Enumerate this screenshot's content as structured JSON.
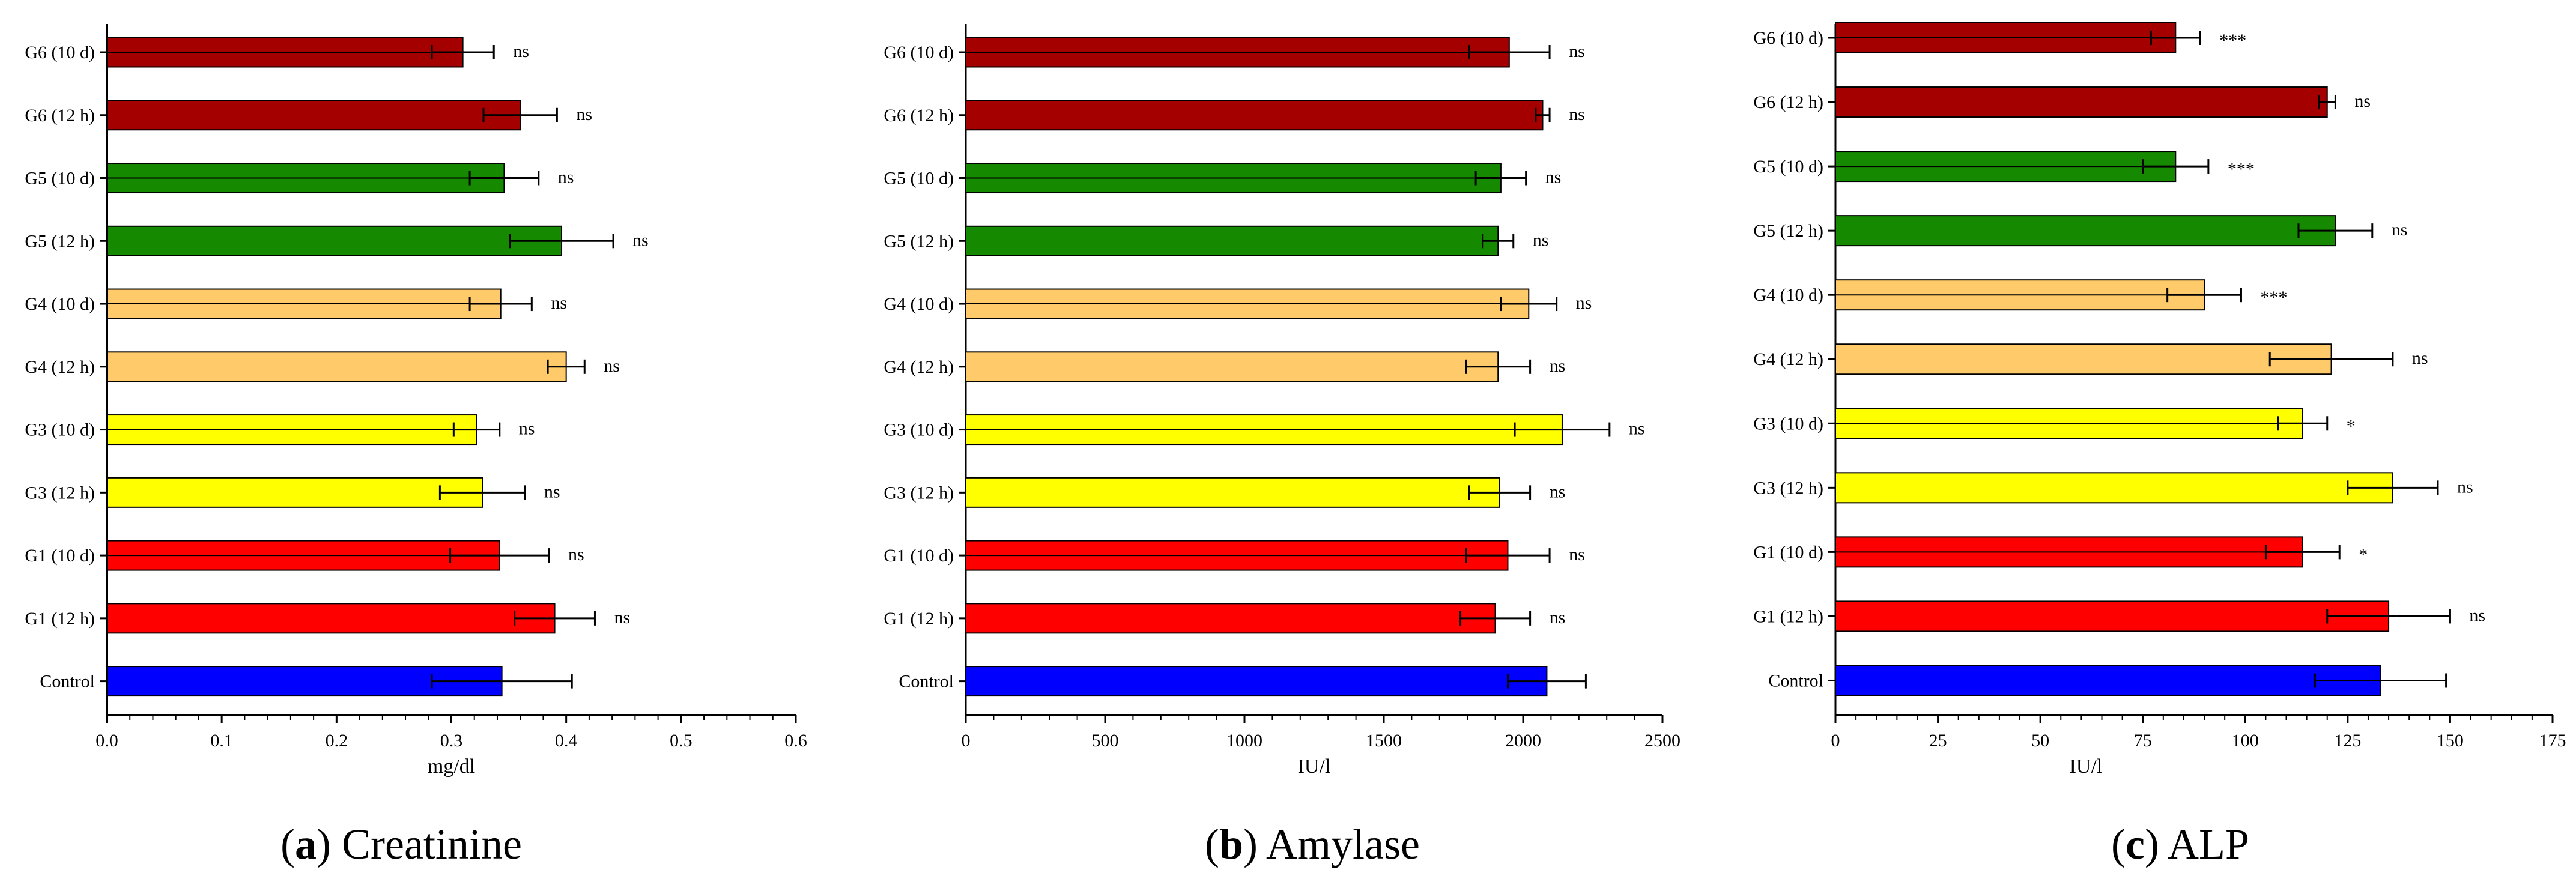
{
  "colors": {
    "G6": "#a50000",
    "G5": "#158a00",
    "G4": "#ffca6a",
    "G3": "#ffff00",
    "G1": "#ff0000",
    "Control": "#0000ff"
  },
  "chart_data": [
    {
      "type": "bar",
      "orientation": "horizontal",
      "caption_letter": "a",
      "caption_text": "Creatinine",
      "xlabel": "mg/dl",
      "xlim": [
        0.0,
        0.6
      ],
      "xticks": [
        "0.0",
        "0.1",
        "0.2",
        "0.3",
        "0.4",
        "0.5",
        "0.6"
      ],
      "xtick_values": [
        0.0,
        0.1,
        0.2,
        0.3,
        0.4,
        0.5,
        0.6
      ],
      "categories": [
        "G6 (10 d)",
        "G6 (12 h)",
        "G5 (10 d)",
        "G5 (12 h)",
        "G4 (10 d)",
        "G4 (12 h)",
        "G3 (10 d)",
        "G3 (12 h)",
        "G1 (10 d)",
        "G1 (12 h)",
        "Control"
      ],
      "values": [
        0.31,
        0.36,
        0.346,
        0.396,
        0.343,
        0.4,
        0.322,
        0.327,
        0.342,
        0.39,
        0.344
      ],
      "errors": [
        0.027,
        0.032,
        0.03,
        0.045,
        0.027,
        0.016,
        0.02,
        0.037,
        0.043,
        0.035,
        0.061
      ],
      "significance": [
        "ns",
        "ns",
        "ns",
        "ns",
        "ns",
        "ns",
        "ns",
        "ns",
        "ns",
        "ns",
        ""
      ]
    },
    {
      "type": "bar",
      "orientation": "horizontal",
      "caption_letter": "b",
      "caption_text": "Amylase",
      "xlabel": "IU/l",
      "xlim": [
        0,
        2500
      ],
      "xticks": [
        "0",
        "500",
        "1000",
        "1500",
        "2000",
        "2500"
      ],
      "xtick_values": [
        0,
        500,
        1000,
        1500,
        2000,
        2500
      ],
      "categories": [
        "G6 (10 d)",
        "G6 (12 h)",
        "G5 (10 d)",
        "G5 (12 h)",
        "G4 (10 d)",
        "G4 (12 h)",
        "G3 (10 d)",
        "G3 (12 h)",
        "G1 (10 d)",
        "G1 (12 h)",
        "Control"
      ],
      "values": [
        1950,
        2070,
        1920,
        1910,
        2020,
        1910,
        2140,
        1915,
        1945,
        1900,
        2085
      ],
      "errors": [
        145,
        25,
        90,
        55,
        100,
        115,
        170,
        110,
        150,
        125,
        140
      ],
      "significance": [
        "ns",
        "ns",
        "ns",
        "ns",
        "ns",
        "ns",
        "ns",
        "ns",
        "ns",
        "ns",
        ""
      ]
    },
    {
      "type": "bar",
      "orientation": "horizontal",
      "caption_letter": "c",
      "caption_text": "ALP",
      "xlabel": "IU/l",
      "xlim": [
        0,
        175
      ],
      "xticks": [
        "0",
        "25",
        "50",
        "75",
        "100",
        "125",
        "150",
        "175"
      ],
      "xtick_values": [
        0,
        25,
        50,
        75,
        100,
        125,
        150,
        175
      ],
      "categories": [
        "G6 (10 d)",
        "G6 (12 h)",
        "G5 (10 d)",
        "G5 (12 h)",
        "G4 (10 d)",
        "G4 (12 h)",
        "G3 (10 d)",
        "G3 (12 h)",
        "G1 (10 d)",
        "G1 (12 h)",
        "Control"
      ],
      "values": [
        83,
        120,
        83,
        122,
        90,
        121,
        114,
        136,
        114,
        135,
        133
      ],
      "errors": [
        6,
        2,
        8,
        9,
        9,
        15,
        6,
        11,
        9,
        15,
        16
      ],
      "significance": [
        "***",
        "ns",
        "***",
        "ns",
        "***",
        "ns",
        "*",
        "ns",
        "*",
        "ns",
        ""
      ]
    }
  ]
}
